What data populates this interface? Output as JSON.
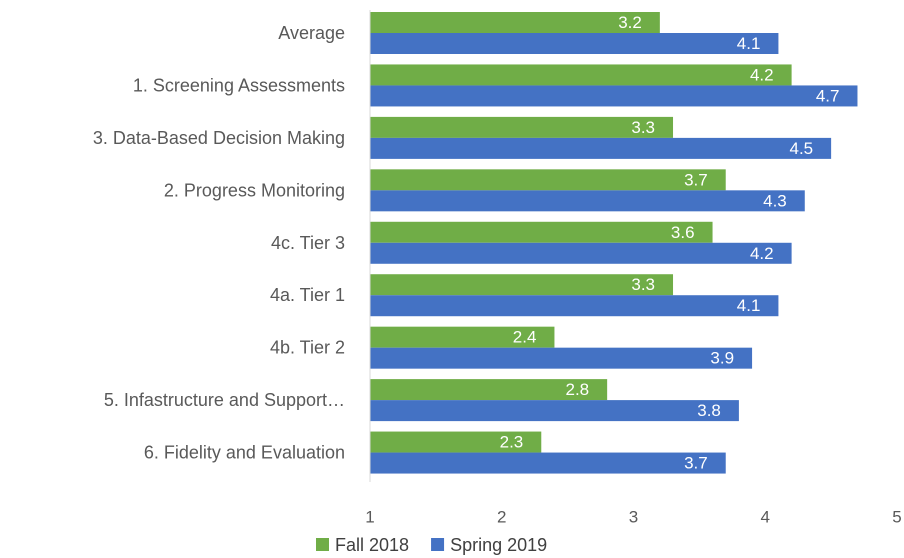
{
  "chart_data": {
    "type": "bar",
    "orientation": "horizontal",
    "categories": [
      "Average",
      "1. Screening Assessments",
      "3. Data-Based Decision Making",
      "2. Progress Monitoring",
      "4c. Tier 3",
      "4a. Tier 1",
      "4b. Tier 2",
      "5. Infastructure and Support…",
      "6. Fidelity and Evaluation"
    ],
    "series": [
      {
        "name": "Fall 2018",
        "color": "#70ad47",
        "values": [
          3.2,
          4.2,
          3.3,
          3.7,
          3.6,
          3.3,
          2.4,
          2.8,
          2.3
        ]
      },
      {
        "name": "Spring 2019",
        "color": "#4472c4",
        "values": [
          4.1,
          4.7,
          4.5,
          4.3,
          4.2,
          4.1,
          3.9,
          3.8,
          3.7
        ]
      }
    ],
    "xlim": [
      1,
      5
    ],
    "xticks": [
      1,
      2,
      3,
      4,
      5
    ],
    "grid": false,
    "legend": "bottom"
  }
}
